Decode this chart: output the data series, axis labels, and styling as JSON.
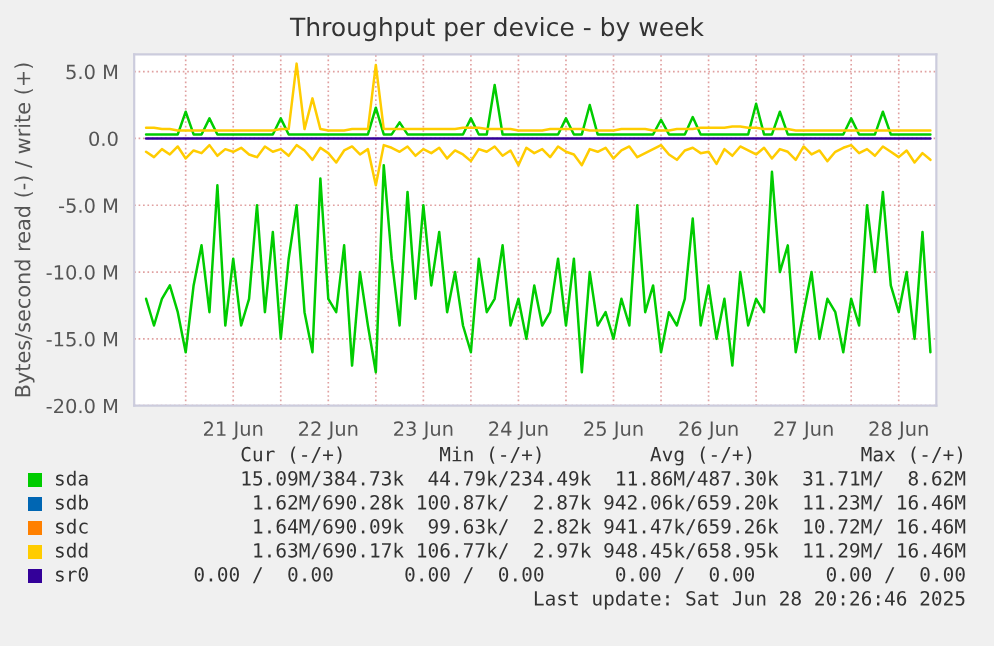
{
  "chart_data": {
    "type": "line",
    "title": "Throughput per device - by week",
    "ylabel": "Bytes/second read (-) / write (+)",
    "x": [
      "2025-06-20T14:00",
      "2025-06-20T16:00",
      "2025-06-20T18:00",
      "2025-06-20T20:00",
      "2025-06-20T22:00",
      "2025-06-21T00:00",
      "2025-06-21T02:00",
      "2025-06-21T04:00",
      "2025-06-21T06:00",
      "2025-06-21T08:00",
      "2025-06-21T10:00",
      "2025-06-21T12:00",
      "2025-06-21T14:00",
      "2025-06-21T16:00",
      "2025-06-21T18:00",
      "2025-06-21T20:00",
      "2025-06-21T22:00",
      "2025-06-22T00:00",
      "2025-06-22T02:00",
      "2025-06-22T04:00",
      "2025-06-22T06:00",
      "2025-06-22T08:00",
      "2025-06-22T10:00",
      "2025-06-22T12:00",
      "2025-06-22T14:00",
      "2025-06-22T16:00",
      "2025-06-22T18:00",
      "2025-06-22T20:00",
      "2025-06-22T22:00",
      "2025-06-23T00:00",
      "2025-06-23T02:00",
      "2025-06-23T04:00",
      "2025-06-23T06:00",
      "2025-06-23T08:00",
      "2025-06-23T10:00",
      "2025-06-23T12:00",
      "2025-06-23T14:00",
      "2025-06-23T16:00",
      "2025-06-23T18:00",
      "2025-06-23T20:00",
      "2025-06-23T22:00",
      "2025-06-24T00:00",
      "2025-06-24T02:00",
      "2025-06-24T04:00",
      "2025-06-24T06:00",
      "2025-06-24T08:00",
      "2025-06-24T10:00",
      "2025-06-24T12:00",
      "2025-06-24T14:00",
      "2025-06-24T16:00",
      "2025-06-24T18:00",
      "2025-06-24T20:00",
      "2025-06-24T22:00",
      "2025-06-25T00:00",
      "2025-06-25T02:00",
      "2025-06-25T04:00",
      "2025-06-25T06:00",
      "2025-06-25T08:00",
      "2025-06-25T10:00",
      "2025-06-25T12:00",
      "2025-06-25T14:00",
      "2025-06-25T16:00",
      "2025-06-25T18:00",
      "2025-06-25T20:00",
      "2025-06-25T22:00",
      "2025-06-26T00:00",
      "2025-06-26T02:00",
      "2025-06-26T04:00",
      "2025-06-26T06:00",
      "2025-06-26T08:00",
      "2025-06-26T10:00",
      "2025-06-26T12:00",
      "2025-06-26T14:00",
      "2025-06-26T16:00",
      "2025-06-26T18:00",
      "2025-06-26T20:00",
      "2025-06-26T22:00",
      "2025-06-27T00:00",
      "2025-06-27T02:00",
      "2025-06-27T04:00",
      "2025-06-27T06:00",
      "2025-06-27T08:00",
      "2025-06-27T10:00",
      "2025-06-27T12:00",
      "2025-06-27T14:00",
      "2025-06-27T16:00",
      "2025-06-27T18:00",
      "2025-06-27T20:00",
      "2025-06-27T22:00",
      "2025-06-28T00:00",
      "2025-06-28T02:00",
      "2025-06-28T04:00",
      "2025-06-28T06:00",
      "2025-06-28T08:00",
      "2025-06-28T10:00",
      "2025-06-28T12:00",
      "2025-06-28T14:00",
      "2025-06-28T16:00",
      "2025-06-28T18:00",
      "2025-06-28T20:00"
    ],
    "series": [
      {
        "name": "sda",
        "color": "#00cc00",
        "values": [
          -12,
          -14,
          -12,
          -11,
          -13,
          -16,
          -11,
          -8,
          -13,
          -3.5,
          -14,
          -9,
          -14,
          -12,
          -5,
          -13,
          -7,
          -15,
          -9,
          -5,
          -13,
          -16,
          -3,
          -12,
          -13,
          -8,
          -17,
          -10,
          -14,
          -17.5,
          -2,
          -9,
          -14,
          -4,
          -12,
          -5,
          -11,
          -7,
          -13,
          -10,
          -14,
          -16,
          -9,
          -13,
          -12,
          -8,
          -14,
          -12,
          -15,
          -11,
          -14,
          -13,
          -9,
          -14,
          -9,
          -17.5,
          -10,
          -14,
          -13,
          -15,
          -12,
          -14,
          -5,
          -13,
          -11,
          -16,
          -13,
          -14,
          -12,
          -6,
          -14,
          -11,
          -15,
          -12,
          -17,
          -10,
          -14,
          -12,
          -13,
          -2.5,
          -10,
          -8,
          -16,
          -13,
          -10,
          -15,
          -12,
          -13,
          -16,
          -12,
          -14,
          -5,
          -10,
          -4,
          -11,
          -13,
          -10,
          -15,
          -7,
          -16
        ]
      },
      {
        "color": "#00cc00",
        "values": [
          0.3,
          0.3,
          0.3,
          0.3,
          0.3,
          2.0,
          0.3,
          0.3,
          1.5,
          0.3,
          0.3,
          0.3,
          0.3,
          0.3,
          0.3,
          0.3,
          0.3,
          1.5,
          0.3,
          0.3,
          0.3,
          0.3,
          0.3,
          0.3,
          0.3,
          0.3,
          0.3,
          0.3,
          0.3,
          2.3,
          0.3,
          0.3,
          1.2,
          0.3,
          0.3,
          0.3,
          0.3,
          0.3,
          0.3,
          0.3,
          0.3,
          1.5,
          0.3,
          0.3,
          4.0,
          0.3,
          0.3,
          0.3,
          0.3,
          0.3,
          0.3,
          0.3,
          0.3,
          1.5,
          0.3,
          0.3,
          2.5,
          0.3,
          0.3,
          0.3,
          0.3,
          0.3,
          0.3,
          0.3,
          0.3,
          1.4,
          0.3,
          0.3,
          0.3,
          1.6,
          0.3,
          0.3,
          0.3,
          0.3,
          0.3,
          0.3,
          0.3,
          2.6,
          0.3,
          0.3,
          2.0,
          0.3,
          0.3,
          0.3,
          0.3,
          0.3,
          0.3,
          0.3,
          0.3,
          1.5,
          0.3,
          0.3,
          0.3,
          2.0,
          0.3,
          0.3,
          0.3,
          0.3,
          0.3,
          0.3
        ]
      },
      {
        "name": "sdb",
        "color": "#0066b3",
        "values": [
          null,
          null,
          null,
          null,
          null,
          null,
          null,
          null,
          null,
          null,
          null,
          null,
          null,
          null,
          null,
          null,
          null,
          null,
          null,
          null,
          null,
          null,
          null,
          null,
          null,
          null,
          null,
          null,
          null,
          null,
          null,
          null,
          null,
          null,
          null,
          null,
          null,
          null,
          null,
          null,
          null,
          null,
          null,
          null,
          null,
          null,
          null,
          null,
          null,
          null,
          null,
          null,
          null,
          null,
          null,
          null,
          null,
          null,
          null,
          null,
          null,
          null,
          null,
          null,
          null,
          null,
          null,
          null,
          null,
          null,
          null,
          null,
          null,
          null,
          null,
          null,
          null,
          null,
          null,
          null,
          null,
          null,
          null,
          null,
          null,
          null,
          null,
          null,
          null,
          null,
          null,
          null,
          null,
          null,
          null,
          null,
          null,
          null,
          null,
          null
        ]
      },
      {
        "name": "sdc",
        "color": "#ff8000",
        "values": [
          null,
          null,
          null,
          null,
          null,
          null,
          null,
          null,
          null,
          null,
          null,
          null,
          null,
          null,
          null,
          null,
          null,
          null,
          null,
          null,
          null,
          null,
          null,
          null,
          null,
          null,
          null,
          null,
          null,
          null,
          null,
          null,
          null,
          null,
          null,
          null,
          null,
          null,
          null,
          null,
          null,
          null,
          null,
          null,
          null,
          null,
          null,
          null,
          null,
          null,
          null,
          null,
          null,
          null,
          null,
          null,
          null,
          null,
          null,
          null,
          null,
          null,
          null,
          null,
          null,
          null,
          null,
          null,
          null,
          null,
          null,
          null,
          null,
          null,
          null,
          null,
          null,
          null,
          null,
          null,
          null,
          null,
          null,
          null,
          null,
          null,
          null,
          null,
          null,
          null,
          null,
          null,
          null,
          null,
          null,
          null,
          null,
          null,
          null,
          null
        ]
      },
      {
        "name": "sdd",
        "color": "#ffcc00",
        "values": [
          -1.0,
          -1.4,
          -0.8,
          -1.2,
          -0.6,
          -1.5,
          -0.9,
          -1.1,
          -0.5,
          -1.3,
          -0.8,
          -1.0,
          -0.7,
          -1.2,
          -1.4,
          -0.6,
          -1.0,
          -0.8,
          -1.3,
          -0.5,
          -0.9,
          -1.6,
          -0.7,
          -1.1,
          -1.8,
          -0.9,
          -0.6,
          -1.2,
          -0.8,
          -3.5,
          -0.5,
          -0.7,
          -1.0,
          -0.6,
          -1.3,
          -0.8,
          -1.1,
          -0.7,
          -1.5,
          -0.9,
          -1.2,
          -1.7,
          -0.8,
          -1.0,
          -0.6,
          -1.3,
          -0.9,
          -2.0,
          -0.7,
          -1.1,
          -0.8,
          -1.4,
          -0.6,
          -1.0,
          -1.2,
          -2.0,
          -0.8,
          -1.0,
          -0.7,
          -1.5,
          -0.9,
          -0.6,
          -1.4,
          -1.1,
          -0.8,
          -0.5,
          -1.2,
          -1.6,
          -0.9,
          -0.7,
          -1.1,
          -1.0,
          -1.9,
          -0.8,
          -1.3,
          -0.6,
          -0.9,
          -1.2,
          -0.7,
          -1.5,
          -0.8,
          -1.0,
          -1.6,
          -0.6,
          -1.2,
          -0.9,
          -1.7,
          -1.0,
          -0.7,
          -0.5,
          -1.1,
          -0.8,
          -1.3,
          -0.6,
          -1.0,
          -1.4,
          -0.9,
          -1.8,
          -1.1,
          -1.6
        ]
      },
      {
        "color": "#ffcc00",
        "values": [
          0.8,
          0.8,
          0.7,
          0.7,
          0.6,
          0.6,
          0.6,
          0.6,
          0.6,
          0.6,
          0.6,
          0.6,
          0.6,
          0.6,
          0.6,
          0.6,
          0.6,
          0.7,
          0.7,
          5.6,
          0.7,
          3.0,
          0.7,
          0.6,
          0.6,
          0.6,
          0.7,
          0.7,
          0.7,
          5.5,
          0.7,
          0.7,
          0.7,
          0.7,
          0.7,
          0.7,
          0.7,
          0.7,
          0.7,
          0.7,
          0.8,
          0.8,
          0.8,
          0.7,
          0.7,
          0.7,
          0.7,
          0.6,
          0.6,
          0.6,
          0.6,
          0.7,
          0.7,
          0.7,
          0.7,
          0.7,
          0.6,
          0.6,
          0.6,
          0.6,
          0.7,
          0.7,
          0.7,
          0.7,
          0.6,
          0.6,
          0.6,
          0.7,
          0.7,
          0.7,
          0.8,
          0.8,
          0.8,
          0.8,
          0.9,
          0.9,
          0.8,
          0.8,
          0.7,
          0.7,
          0.7,
          0.7,
          0.6,
          0.6,
          0.6,
          0.6,
          0.6,
          0.6,
          0.6,
          0.6,
          0.6,
          0.6,
          0.6,
          0.6,
          0.6,
          0.6,
          0.6,
          0.6,
          0.6,
          0.6
        ]
      },
      {
        "name": "sr0",
        "color": "#330099",
        "values": [
          0,
          0,
          0,
          0,
          0,
          0,
          0,
          0,
          0,
          0,
          0,
          0,
          0,
          0,
          0,
          0,
          0,
          0,
          0,
          0,
          0,
          0,
          0,
          0,
          0,
          0,
          0,
          0,
          0,
          0,
          0,
          0,
          0,
          0,
          0,
          0,
          0,
          0,
          0,
          0,
          0,
          0,
          0,
          0,
          0,
          0,
          0,
          0,
          0,
          0,
          0,
          0,
          0,
          0,
          0,
          0,
          0,
          0,
          0,
          0,
          0,
          0,
          0,
          0,
          0,
          0,
          0,
          0,
          0,
          0,
          0,
          0,
          0,
          0,
          0,
          0,
          0,
          0,
          0,
          0,
          0,
          0,
          0,
          0,
          0,
          0,
          0,
          0,
          0,
          0,
          0,
          0,
          0,
          0,
          0,
          0,
          0,
          0,
          0,
          0
        ]
      }
    ],
    "xlim": [
      "2025-06-20T11:00",
      "2025-06-28T21:30"
    ],
    "xticks": [
      {
        "value": "2025-06-21T00:00",
        "label": null
      },
      {
        "value": "2025-06-21T12:00",
        "label": "21 Jun"
      },
      {
        "value": "2025-06-22T00:00",
        "label": null
      },
      {
        "value": "2025-06-22T12:00",
        "label": "22 Jun"
      },
      {
        "value": "2025-06-23T00:00",
        "label": null
      },
      {
        "value": "2025-06-23T12:00",
        "label": "23 Jun"
      },
      {
        "value": "2025-06-24T00:00",
        "label": null
      },
      {
        "value": "2025-06-24T12:00",
        "label": "24 Jun"
      },
      {
        "value": "2025-06-25T00:00",
        "label": null
      },
      {
        "value": "2025-06-25T12:00",
        "label": "25 Jun"
      },
      {
        "value": "2025-06-26T00:00",
        "label": null
      },
      {
        "value": "2025-06-26T12:00",
        "label": "26 Jun"
      },
      {
        "value": "2025-06-27T00:00",
        "label": null
      },
      {
        "value": "2025-06-27T12:00",
        "label": "27 Jun"
      },
      {
        "value": "2025-06-28T00:00",
        "label": null
      },
      {
        "value": "2025-06-28T12:00",
        "label": "28 Jun"
      }
    ],
    "ylim": [
      -20,
      6.3
    ],
    "yticks": [
      {
        "value": 5,
        "label": "5.0 M"
      },
      {
        "value": 0,
        "label": "0.0"
      },
      {
        "value": -5,
        "label": "-5.0 M"
      },
      {
        "value": -10,
        "label": "-10.0 M"
      },
      {
        "value": -15,
        "label": "-15.0 M"
      },
      {
        "value": -20,
        "label": "-20.0 M"
      }
    ],
    "grid": true,
    "legend": "bottom",
    "line_style": "solid",
    "marker": "none",
    "annotations": [
      "Cur (-/+)        Min (-/+)         Avg (-/+)         Max (-/+)",
      "15.09M/384.73k  44.79k/234.49k  11.86M/487.30k  31.71M/  8.62M",
      "1.62M/690.28k 100.87k/  2.87k 942.06k/659.20k  11.23M/ 16.46M",
      "1.64M/690.09k  99.63k/  2.82k 941.47k/659.26k  10.72M/ 16.46M",
      "1.63M/690.17k 106.77k/  2.97k 948.45k/658.95k  11.29M/ 16.46M",
      "0.00 /  0.00      0.00 /  0.00      0.00 /  0.00      0.00 /  0.00",
      "Last update: Sat Jun 28 20:26:46 2025"
    ]
  }
}
